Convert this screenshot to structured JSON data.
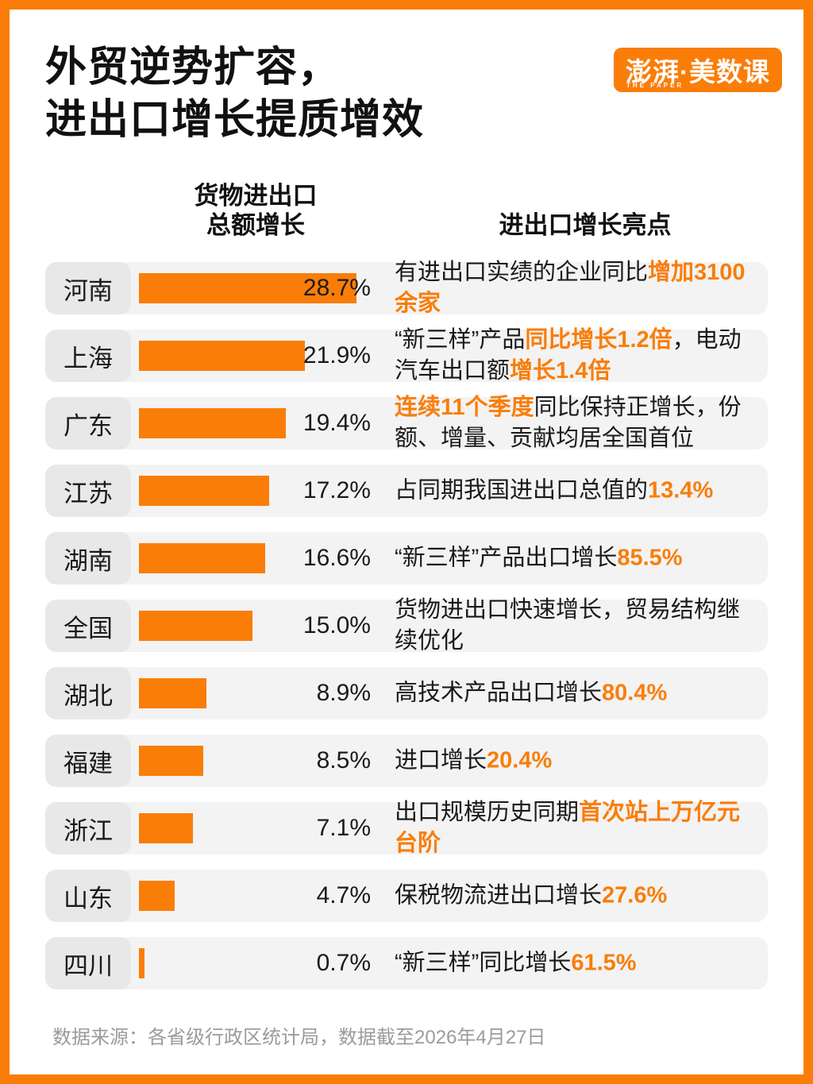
{
  "colors": {
    "accent": "#FA7D08",
    "row_bg": "#F3F3F3",
    "label_bg": "#E8E8E8",
    "ink": "#1A1A1A",
    "muted": "#9B9B9B"
  },
  "page": {
    "title_lines": [
      "外贸逆势扩容，",
      "进出口增长提质增效"
    ],
    "logo": {
      "main": "澎湃·美数课",
      "sub": "THE PAPER"
    },
    "col_headers": {
      "bar": [
        "货物进出口",
        "总额增长"
      ],
      "highlight": "进出口增长亮点"
    },
    "footer": "数据来源：各省级行政区统计局，数据截至2026年4月27日"
  },
  "chart_data": {
    "type": "bar",
    "title": "外贸逆势扩容，进出口增长提质增效",
    "xlabel": "货物进出口总额增长",
    "unit": "%",
    "xlim": [
      0,
      30
    ],
    "categories": [
      "河南",
      "上海",
      "广东",
      "江苏",
      "湖南",
      "全国",
      "湖北",
      "福建",
      "浙江",
      "山东",
      "四川"
    ],
    "values": [
      28.7,
      21.9,
      19.4,
      17.2,
      16.6,
      15.0,
      8.9,
      8.5,
      7.1,
      4.7,
      0.7
    ],
    "rows": [
      {
        "region": "河南",
        "value": 28.7,
        "value_label": "28.7%",
        "highlight": [
          {
            "text": "有进出口实绩的企业同比",
            "em": false
          },
          {
            "text": "增加3100余家",
            "em": true
          }
        ]
      },
      {
        "region": "上海",
        "value": 21.9,
        "value_label": "21.9%",
        "highlight": [
          {
            "text": "“新三样”产品",
            "em": false
          },
          {
            "text": "同比增长1.2倍",
            "em": true
          },
          {
            "text": "，电动汽车出口额",
            "em": false
          },
          {
            "text": "增长1.4倍",
            "em": true
          }
        ]
      },
      {
        "region": "广东",
        "value": 19.4,
        "value_label": "19.4%",
        "highlight": [
          {
            "text": "连续11个季度",
            "em": true
          },
          {
            "text": "同比保持正增长，份额、增量、贡献均居全国首位",
            "em": false
          }
        ]
      },
      {
        "region": "江苏",
        "value": 17.2,
        "value_label": "17.2%",
        "highlight": [
          {
            "text": "占同期我国进出口总值的",
            "em": false
          },
          {
            "text": "13.4%",
            "em": true
          }
        ]
      },
      {
        "region": "湖南",
        "value": 16.6,
        "value_label": "16.6%",
        "highlight": [
          {
            "text": "“新三样”产品出口增长",
            "em": false
          },
          {
            "text": "85.5%",
            "em": true
          }
        ]
      },
      {
        "region": "全国",
        "value": 15.0,
        "value_label": "15.0%",
        "highlight": [
          {
            "text": "货物进出口快速增长，贸易结构继续优化",
            "em": false
          }
        ]
      },
      {
        "region": "湖北",
        "value": 8.9,
        "value_label": "8.9%",
        "highlight": [
          {
            "text": "高技术产品出口增长",
            "em": false
          },
          {
            "text": "80.4%",
            "em": true
          }
        ]
      },
      {
        "region": "福建",
        "value": 8.5,
        "value_label": "8.5%",
        "highlight": [
          {
            "text": "进口增长",
            "em": false
          },
          {
            "text": "20.4%",
            "em": true
          }
        ]
      },
      {
        "region": "浙江",
        "value": 7.1,
        "value_label": "7.1%",
        "highlight": [
          {
            "text": "出口规模历史同期",
            "em": false
          },
          {
            "text": "首次站上万亿元台阶",
            "em": true
          }
        ]
      },
      {
        "region": "山东",
        "value": 4.7,
        "value_label": "4.7%",
        "highlight": [
          {
            "text": "保税物流进出口增长",
            "em": false
          },
          {
            "text": "27.6%",
            "em": true
          }
        ]
      },
      {
        "region": "四川",
        "value": 0.7,
        "value_label": "0.7%",
        "highlight": [
          {
            "text": "“新三样”同比增长",
            "em": false
          },
          {
            "text": "61.5%",
            "em": true
          }
        ]
      }
    ]
  }
}
